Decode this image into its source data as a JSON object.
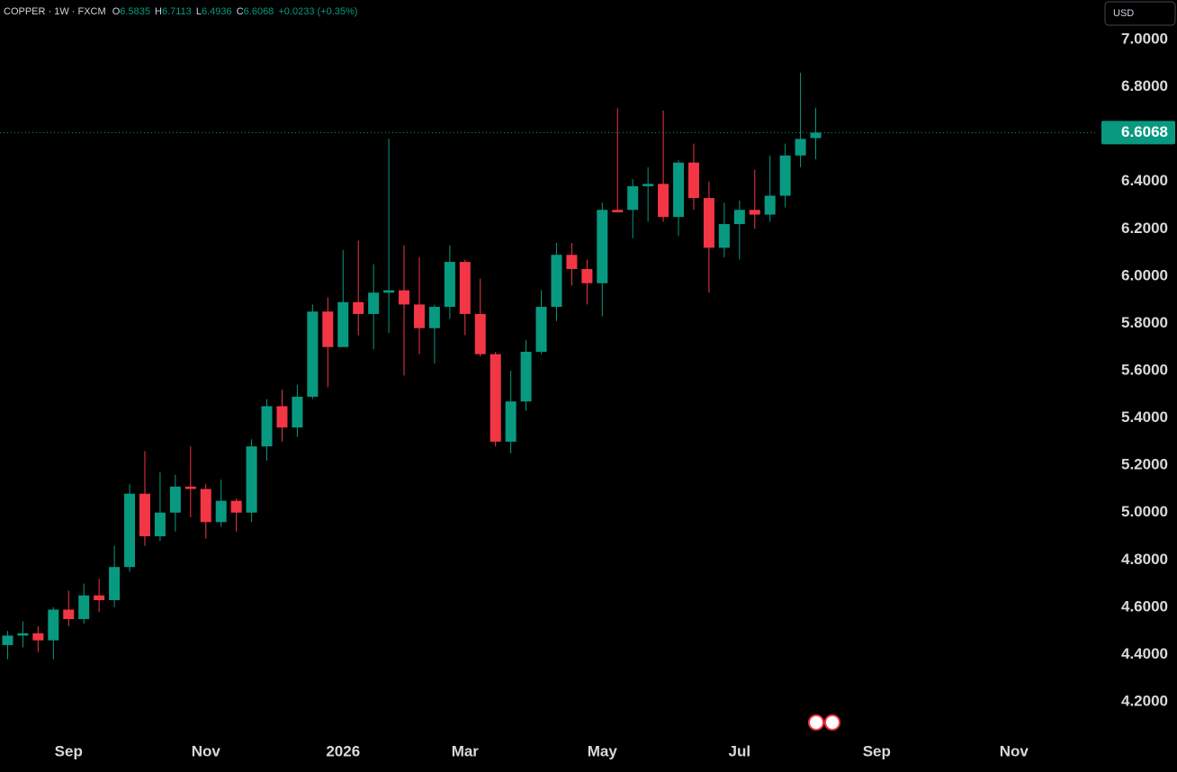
{
  "chart_data": {
    "type": "candlestick",
    "title": "COPPER · 1W · FXCM",
    "ohlc_labels": [
      "O",
      "H",
      "L",
      "C"
    ],
    "change_label": "+0.0233 (+0.35%)",
    "currency": "USD",
    "up_color": "#089981",
    "down_color": "#f23645",
    "xlim": [
      -0.5,
      71.5
    ],
    "xticks": [
      {
        "value": 4,
        "label": "Sep"
      },
      {
        "value": 13,
        "label": "Nov"
      },
      {
        "value": 22,
        "label": "2026"
      },
      {
        "value": 30,
        "label": "Mar"
      },
      {
        "value": 39,
        "label": "May"
      },
      {
        "value": 48,
        "label": "Jul"
      },
      {
        "value": 57,
        "label": "Sep"
      },
      {
        "value": 66,
        "label": "Nov"
      }
    ],
    "ylim": [
      4.0555,
      7.1674
    ],
    "yticks": [
      {
        "value": 4.2,
        "label": "4.2000"
      },
      {
        "value": 4.4,
        "label": "4.4000"
      },
      {
        "value": 4.6,
        "label": "4.6000"
      },
      {
        "value": 4.8,
        "label": "4.8000"
      },
      {
        "value": 5.0,
        "label": "5.0000"
      },
      {
        "value": 5.2,
        "label": "5.2000"
      },
      {
        "value": 5.4,
        "label": "5.4000"
      },
      {
        "value": 5.6,
        "label": "5.6000"
      },
      {
        "value": 5.8,
        "label": "5.8000"
      },
      {
        "value": 6.0,
        "label": "6.0000"
      },
      {
        "value": 6.2,
        "label": "6.2000"
      },
      {
        "value": 6.4,
        "label": "6.4000"
      },
      {
        "value": 6.8,
        "label": "6.8000"
      },
      {
        "value": 7.0,
        "label": "7.0000"
      }
    ],
    "grid": false,
    "open": [
      4.44,
      4.48,
      4.49,
      4.46,
      4.59,
      4.55,
      4.65,
      4.63,
      4.77,
      5.08,
      4.9,
      5.0,
      5.11,
      5.1,
      4.96,
      5.05,
      5.0,
      5.28,
      5.45,
      5.36,
      5.49,
      5.85,
      5.7,
      5.89,
      5.84,
      5.93,
      5.94,
      5.88,
      5.78,
      5.87,
      6.06,
      5.84,
      5.67,
      5.3,
      5.47,
      5.68,
      5.87,
      6.09,
      6.03,
      5.97,
      6.28,
      6.28,
      6.38,
      6.39,
      6.25,
      6.48,
      6.33,
      6.12,
      6.22,
      6.28,
      6.26,
      6.34,
      6.51,
      6.5835
    ],
    "high": [
      4.5,
      4.54,
      4.52,
      4.6,
      4.67,
      4.7,
      4.72,
      4.86,
      5.12,
      5.26,
      5.17,
      5.16,
      5.28,
      5.12,
      5.14,
      5.06,
      5.31,
      5.48,
      5.52,
      5.54,
      5.88,
      5.91,
      6.11,
      6.15,
      6.05,
      6.58,
      6.13,
      6.08,
      5.88,
      6.13,
      6.07,
      5.99,
      5.68,
      5.6,
      5.73,
      5.94,
      6.14,
      6.14,
      6.07,
      6.31,
      6.71,
      6.41,
      6.46,
      6.7,
      6.49,
      6.56,
      6.4,
      6.31,
      6.32,
      6.45,
      6.51,
      6.56,
      6.86,
      6.7113
    ],
    "low": [
      4.38,
      4.43,
      4.41,
      4.38,
      4.52,
      4.53,
      4.58,
      4.6,
      4.75,
      4.86,
      4.88,
      4.92,
      4.98,
      4.89,
      4.94,
      4.92,
      4.96,
      5.22,
      5.3,
      5.32,
      5.48,
      5.53,
      5.7,
      5.75,
      5.69,
      5.76,
      5.58,
      5.67,
      5.63,
      5.82,
      5.75,
      5.66,
      5.28,
      5.25,
      5.43,
      5.67,
      5.81,
      5.96,
      5.88,
      5.83,
      6.27,
      6.16,
      6.23,
      6.23,
      6.17,
      6.28,
      5.93,
      6.08,
      6.07,
      6.2,
      6.23,
      6.29,
      6.46,
      6.4936
    ],
    "close": [
      4.48,
      4.49,
      4.46,
      4.59,
      4.55,
      4.65,
      4.63,
      4.77,
      5.08,
      4.9,
      5.0,
      5.11,
      5.1,
      4.96,
      5.05,
      5.0,
      5.28,
      5.45,
      5.36,
      5.49,
      5.85,
      5.7,
      5.89,
      5.84,
      5.93,
      5.94,
      5.88,
      5.78,
      5.87,
      6.06,
      5.84,
      5.67,
      5.3,
      5.47,
      5.68,
      5.87,
      6.09,
      6.03,
      5.97,
      6.28,
      6.27,
      6.38,
      6.39,
      6.25,
      6.48,
      6.33,
      6.12,
      6.22,
      6.28,
      6.26,
      6.34,
      6.51,
      6.58,
      6.6068
    ]
  }
}
